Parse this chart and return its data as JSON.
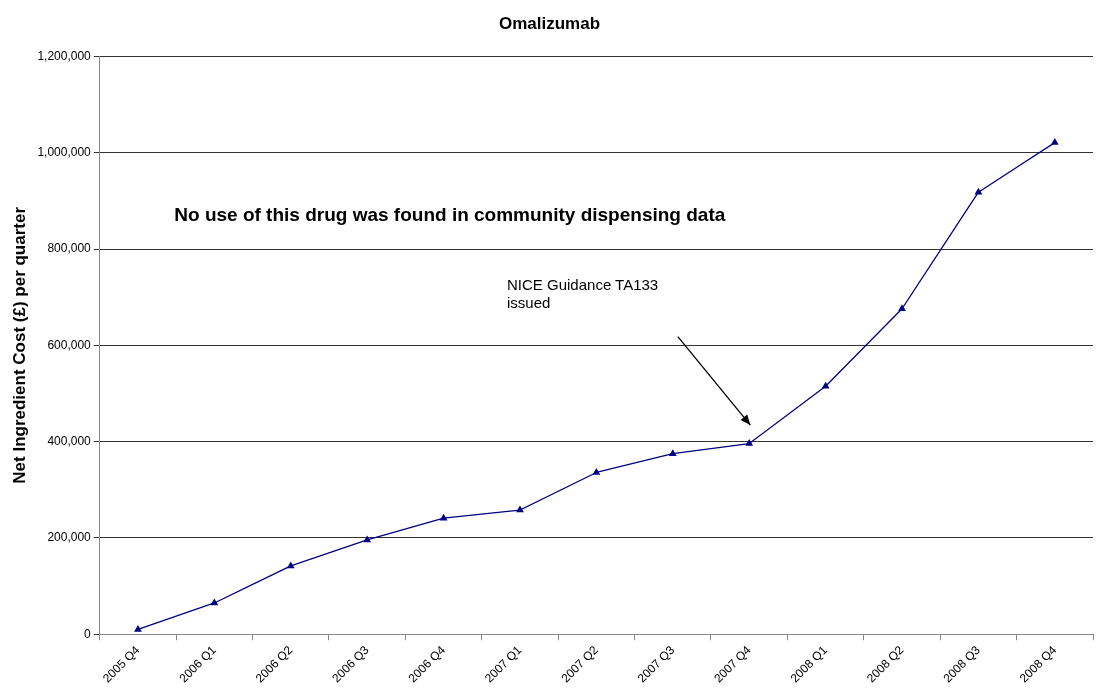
{
  "chart_data": {
    "type": "line",
    "title": "Omalizumab",
    "ylabel": "Net Ingredient Cost (£) per quarter",
    "categories": [
      "2005 Q4",
      "2006 Q1",
      "2006 Q2",
      "2006 Q3",
      "2006 Q4",
      "2007 Q1",
      "2007 Q2",
      "2007 Q3",
      "2007 Q4",
      "2008 Q1",
      "2008 Q2",
      "2008 Q3",
      "2008 Q4"
    ],
    "series": [
      {
        "color": "#000080",
        "values": [
          10000,
          65000,
          142000,
          196000,
          241000,
          258000,
          336000,
          375000,
          396000,
          515000,
          676000,
          918000,
          1021000
        ]
      }
    ],
    "ylim": [
      0,
      1200000
    ],
    "yticks": [
      0,
      {
        "value": 200000,
        "label": "200,000"
      },
      {
        "value": 400000,
        "label": "400,000"
      },
      {
        "value": 600000,
        "label": "600,000"
      },
      {
        "value": 800000,
        "label": "800,000"
      },
      {
        "value": 1000000,
        "label": "1,000,000"
      },
      {
        "value": 1200000,
        "label": "1,200,000"
      }
    ],
    "grid": "y",
    "legend": false,
    "marker": "triangle",
    "line_style": "solid",
    "annotations": [
      "No use of this drug was found in community dispensing data",
      "NICE Guidance TA133 issued"
    ]
  }
}
